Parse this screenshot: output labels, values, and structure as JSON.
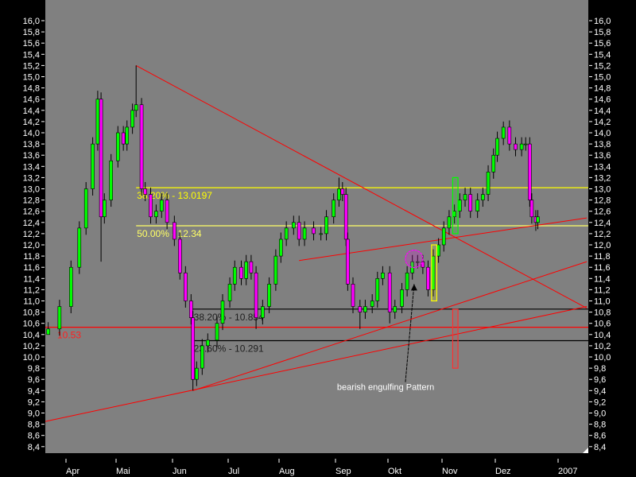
{
  "chart_data": {
    "type": "candlestick",
    "colors": {
      "background": "#808080",
      "frame": "#000000",
      "up": "#00ff00",
      "down": "#ff00ff",
      "text": "#ffffff"
    },
    "y_axis": {
      "range": [
        8.4,
        16.0
      ],
      "step": 0.2,
      "decimal_comma": true,
      "sides": [
        "left",
        "right"
      ]
    },
    "x_axis": {
      "tick_labels": [
        "Apr",
        "Mai",
        "Jun",
        "Jul",
        "Aug",
        "Sep",
        "Okt",
        "Nov",
        "Dez",
        "2007"
      ]
    },
    "grid": false,
    "series": [
      {
        "d": "2006-03-21",
        "c": 10.5,
        "l": 10.4
      },
      {
        "d": "2006-03-28",
        "c": 10.9
      },
      {
        "d": "2006-04-04",
        "c": 11.6
      },
      {
        "d": "2006-04-09",
        "c": 12.3
      },
      {
        "d": "2006-04-13",
        "c": 13.0
      },
      {
        "d": "2006-04-17",
        "c": 13.8
      },
      {
        "d": "2006-04-20",
        "c": 14.6,
        "h": 14.75
      },
      {
        "d": "2006-04-22",
        "c": 12.5,
        "l": 11.7
      },
      {
        "d": "2006-04-24",
        "c": 12.8
      },
      {
        "d": "2006-04-28",
        "c": 13.5
      },
      {
        "d": "2006-05-02",
        "c": 14.0
      },
      {
        "d": "2006-05-05",
        "c": 13.8
      },
      {
        "d": "2006-05-07",
        "c": 14.1
      },
      {
        "d": "2006-05-10",
        "c": 14.4
      },
      {
        "d": "2006-05-12",
        "c": 14.5,
        "h": 15.2
      },
      {
        "d": "2006-05-15",
        "c": 13.0
      },
      {
        "d": "2006-05-17",
        "c": 12.9
      },
      {
        "d": "2006-05-20",
        "c": 12.5
      },
      {
        "d": "2006-05-23",
        "c": 12.6
      },
      {
        "d": "2006-05-26",
        "c": 12.8
      },
      {
        "d": "2006-05-29",
        "c": 12.4
      },
      {
        "d": "2006-06-02",
        "c": 12.1
      },
      {
        "d": "2006-06-05",
        "c": 11.5
      },
      {
        "d": "2006-06-08",
        "c": 11.0
      },
      {
        "d": "2006-06-11",
        "c": 10.7
      },
      {
        "d": "2006-06-12",
        "c": 9.6,
        "l": 9.4
      },
      {
        "d": "2006-06-14",
        "c": 9.8
      },
      {
        "d": "2006-06-17",
        "c": 10.2
      },
      {
        "d": "2006-06-20",
        "c": 10.3
      },
      {
        "d": "2006-06-25",
        "c": 10.6
      },
      {
        "d": "2006-06-28",
        "c": 11.0
      },
      {
        "d": "2006-07-02",
        "c": 11.3
      },
      {
        "d": "2006-07-05",
        "c": 11.6
      },
      {
        "d": "2006-07-09",
        "c": 11.4
      },
      {
        "d": "2006-07-12",
        "c": 11.7
      },
      {
        "d": "2006-07-15",
        "c": 11.5
      },
      {
        "d": "2006-07-18",
        "c": 10.7,
        "l": 10.5
      },
      {
        "d": "2006-07-22",
        "c": 10.9
      },
      {
        "d": "2006-07-26",
        "c": 11.3
      },
      {
        "d": "2006-07-30",
        "c": 11.8
      },
      {
        "d": "2006-08-02",
        "c": 12.1
      },
      {
        "d": "2006-08-05",
        "c": 12.3
      },
      {
        "d": "2006-08-09",
        "c": 12.4
      },
      {
        "d": "2006-08-12",
        "c": 12.1
      },
      {
        "d": "2006-08-15",
        "c": 12.3
      },
      {
        "d": "2006-08-20",
        "c": 12.2
      },
      {
        "d": "2006-08-24",
        "c": 12.2
      },
      {
        "d": "2006-08-27",
        "c": 12.5
      },
      {
        "d": "2006-08-31",
        "c": 12.8
      },
      {
        "d": "2006-09-03",
        "c": 13.0,
        "h": 13.2
      },
      {
        "d": "2006-09-05",
        "c": 12.9
      },
      {
        "d": "2006-09-07",
        "c": 12.1
      },
      {
        "d": "2006-09-08",
        "c": 11.3
      },
      {
        "d": "2006-09-11",
        "c": 10.9
      },
      {
        "d": "2006-09-15",
        "c": 10.8,
        "l": 10.5
      },
      {
        "d": "2006-09-18",
        "c": 10.9
      },
      {
        "d": "2006-09-22",
        "c": 11.0
      },
      {
        "d": "2006-09-25",
        "c": 11.4
      },
      {
        "d": "2006-09-28",
        "c": 11.5
      },
      {
        "d": "2006-10-02",
        "c": 10.8,
        "l": 10.6
      },
      {
        "d": "2006-10-05",
        "c": 10.9
      },
      {
        "d": "2006-10-09",
        "c": 11.2
      },
      {
        "d": "2006-10-12",
        "c": 11.5
      },
      {
        "d": "2006-10-15",
        "c": 11.7
      },
      {
        "d": "2006-10-18",
        "c": 11.7
      },
      {
        "d": "2006-10-21",
        "c": 11.6
      },
      {
        "d": "2006-10-24",
        "c": 11.2
      },
      {
        "d": "2006-10-27",
        "c": 11.8
      },
      {
        "d": "2006-10-30",
        "c": 12.0
      },
      {
        "d": "2006-11-02",
        "c": 12.3
      },
      {
        "d": "2006-11-05",
        "c": 12.5
      },
      {
        "d": "2006-11-08",
        "c": 12.6
      },
      {
        "d": "2006-11-11",
        "c": 12.8
      },
      {
        "d": "2006-11-14",
        "c": 12.9
      },
      {
        "d": "2006-11-17",
        "c": 12.6
      },
      {
        "d": "2006-11-21",
        "c": 12.8
      },
      {
        "d": "2006-11-24",
        "c": 12.9
      },
      {
        "d": "2006-11-27",
        "c": 13.3
      },
      {
        "d": "2006-11-30",
        "c": 13.6
      },
      {
        "d": "2006-12-02",
        "c": 13.9
      },
      {
        "d": "2006-12-05",
        "c": 14.1,
        "h": 14.2
      },
      {
        "d": "2006-12-08",
        "c": 13.8
      },
      {
        "d": "2006-12-11",
        "c": 13.7
      },
      {
        "d": "2006-12-14",
        "c": 13.8
      },
      {
        "d": "2006-12-16",
        "c": 13.8
      },
      {
        "d": "2006-12-18",
        "c": 12.8
      },
      {
        "d": "2006-12-19",
        "c": 12.5
      },
      {
        "d": "2006-12-21",
        "c": 12.4,
        "l": 12.25
      },
      {
        "d": "2006-12-22",
        "c": 12.5
      }
    ],
    "horizontal_lines": [
      {
        "value": 13.0197,
        "label": "38.20% - 13.0197",
        "color": "#ffff00",
        "from": "2006-05-12"
      },
      {
        "value": 12.34,
        "label": "50.00% - 12.34",
        "color": "#ffff66",
        "from": "2006-05-12"
      },
      {
        "value": 10.854,
        "label": "38.20% - 10.854",
        "color": "#000000",
        "from": "2006-06-12"
      },
      {
        "value": 10.291,
        "label": "23.60% - 10.291",
        "color": "#000000",
        "from": "2006-06-12"
      },
      {
        "value": 10.53,
        "label": "10.53",
        "color": "#ff0000",
        "from": "2006-03-15"
      }
    ],
    "trendlines": [
      {
        "from": [
          "2006-05-12",
          15.2
        ],
        "to": [
          "2007-01-17",
          10.87
        ],
        "color": "#ff0000"
      },
      {
        "from": [
          "2006-06-12",
          9.4
        ],
        "to": [
          "2007-01-17",
          11.7
        ],
        "color": "#ff0000"
      },
      {
        "from": [
          "2006-03-15",
          8.85
        ],
        "to": [
          "2007-01-17",
          10.9
        ],
        "color": "#ff0000"
      },
      {
        "from": [
          "2006-08-12",
          11.72
        ],
        "to": [
          "2007-01-17",
          12.48
        ],
        "color": "#ff0000"
      }
    ],
    "boxes": [
      {
        "from": "2006-11-07",
        "to": "2006-11-10",
        "top": 13.2,
        "bottom": 12.2,
        "color": "#00ff00"
      },
      {
        "from": "2006-10-26",
        "to": "2006-10-29",
        "top": 12.0,
        "bottom": 11.0,
        "color": "#ffff00"
      },
      {
        "from": "2006-11-07",
        "to": "2006-11-10",
        "top": 10.85,
        "bottom": 9.8,
        "color": "#ff3030"
      }
    ],
    "circle": {
      "d": "2006-10-16",
      "value": 11.75,
      "color": "#ff00ff"
    },
    "annotation": {
      "text": "bearish engulfing Pattern",
      "target": [
        "2006-10-16",
        11.3
      ],
      "anchor": [
        "2006-10-11",
        9.55
      ]
    }
  }
}
